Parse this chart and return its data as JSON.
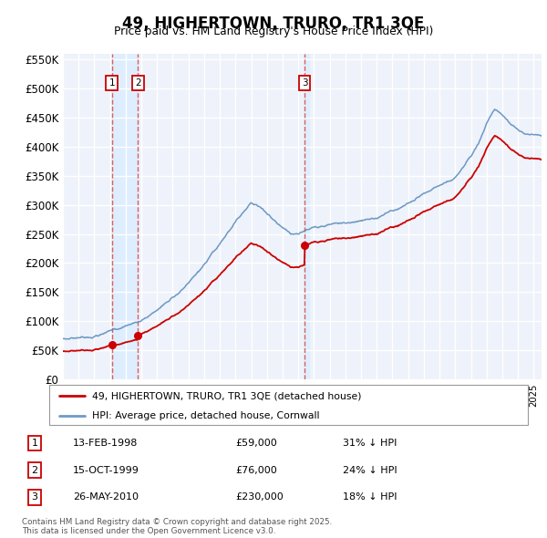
{
  "title": "49, HIGHERTOWN, TRURO, TR1 3QE",
  "subtitle": "Price paid vs. HM Land Registry's House Price Index (HPI)",
  "legend_label_red": "49, HIGHERTOWN, TRURO, TR1 3QE (detached house)",
  "legend_label_blue": "HPI: Average price, detached house, Cornwall",
  "transactions": [
    {
      "num": 1,
      "date": "13-FEB-1998",
      "price": 59000,
      "hpi_pct": "31% ↓ HPI",
      "year": 1998.12
    },
    {
      "num": 2,
      "date": "15-OCT-1999",
      "price": 76000,
      "hpi_pct": "24% ↓ HPI",
      "year": 1999.79
    },
    {
      "num": 3,
      "date": "26-MAY-2010",
      "price": 230000,
      "hpi_pct": "18% ↓ HPI",
      "year": 2010.4
    }
  ],
  "footnote": "Contains HM Land Registry data © Crown copyright and database right 2025.\nThis data is licensed under the Open Government Licence v3.0.",
  "ylim": [
    0,
    560000
  ],
  "xlim_start": 1995.0,
  "xlim_end": 2025.5,
  "red_color": "#cc0000",
  "blue_color": "#5588bb",
  "shade_color": "#ddeeff",
  "bg_color": "#eef2fa",
  "grid_color": "#ffffff",
  "vline_color": "#dd4444"
}
